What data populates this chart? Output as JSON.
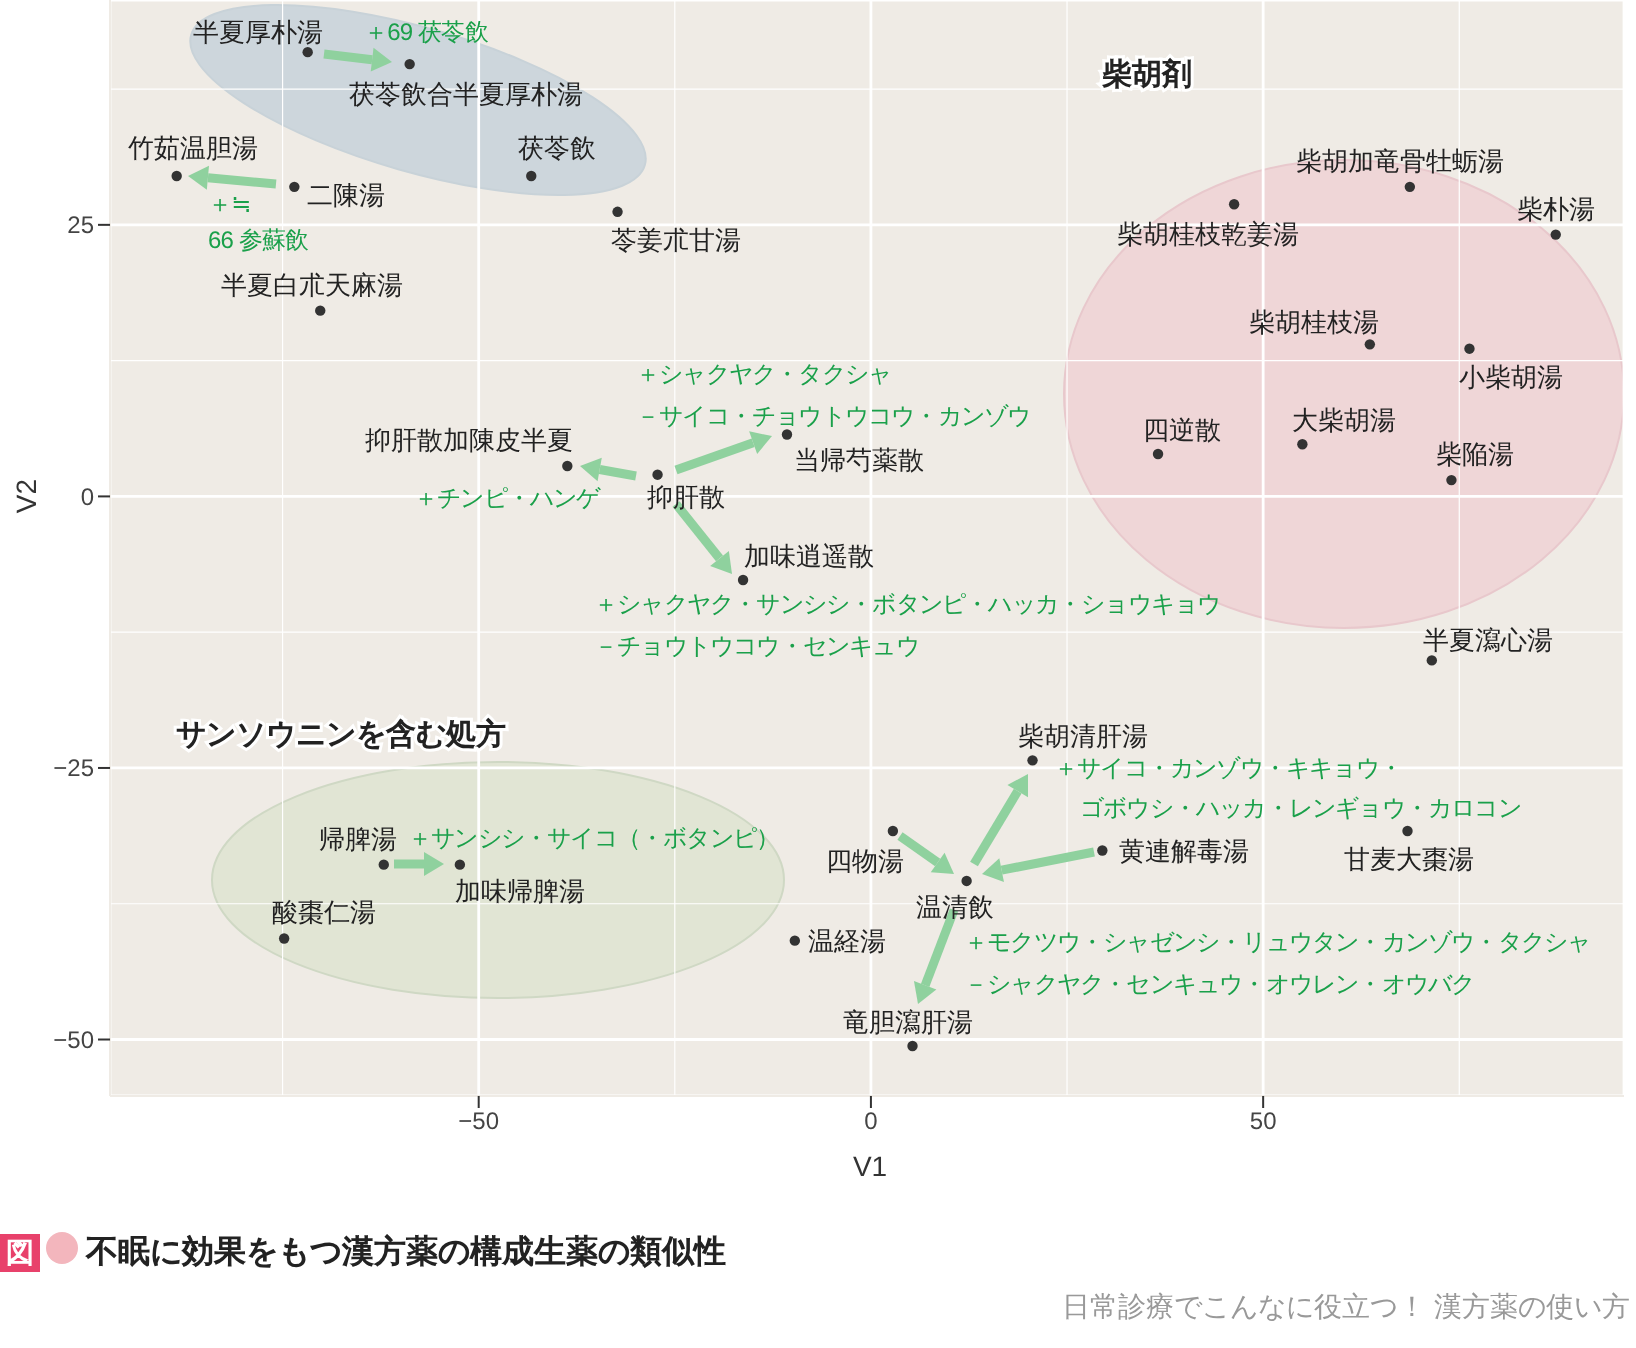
{
  "chart_data": {
    "type": "scatter",
    "title": "不眠に効果をもつ漢方薬の構成生薬の類似性",
    "xlabel": "V1",
    "ylabel": "V2",
    "x": [
      -71.8,
      -58.8,
      -88.5,
      -73.5,
      -43.3,
      -32.3,
      -70.2,
      -38.7,
      -27.2,
      -10.7,
      -16.3,
      46.3,
      68.7,
      87.3,
      63.6,
      76.3,
      36.6,
      55.0,
      74.0,
      71.5,
      20.6,
      2.8,
      29.5,
      68.4,
      12.2,
      -9.7,
      5.3,
      -62.1,
      -52.4,
      -74.8
    ],
    "values": [
      40.9,
      39.8,
      29.5,
      28.5,
      29.5,
      26.2,
      17.1,
      2.8,
      2.0,
      5.7,
      -7.7,
      26.9,
      28.5,
      24.1,
      14.0,
      13.6,
      3.9,
      4.8,
      1.5,
      -15.1,
      -24.3,
      -30.8,
      -32.6,
      -30.8,
      -35.4,
      -40.9,
      -50.6,
      -33.9,
      -33.9,
      -40.7
    ],
    "color": "#333333",
    "marker": "circle",
    "xlim": [
      -97,
      96
    ],
    "ylim": [
      -55.2,
      45.7
    ],
    "xticks": [
      -50,
      0,
      50
    ],
    "yticks": [
      -50,
      -25,
      0,
      25
    ],
    "grid": true,
    "annotations": [
      {
        "text": "半夏厚朴湯",
        "x": -71.8,
        "y": 40.9
      },
      {
        "text": "茯苓飲合半夏厚朴湯",
        "x": -58.8,
        "y": 39.8
      },
      {
        "text": "竹茹温胆湯",
        "x": -88.5,
        "y": 29.5
      },
      {
        "text": "二陳湯",
        "x": -73.5,
        "y": 28.5
      },
      {
        "text": "茯苓飲",
        "x": -43.3,
        "y": 29.5
      },
      {
        "text": "苓姜朮甘湯",
        "x": -32.3,
        "y": 26.2
      },
      {
        "text": "半夏白朮天麻湯",
        "x": -70.2,
        "y": 17.1
      },
      {
        "text": "抑肝散加陳皮半夏",
        "x": -38.7,
        "y": 2.8
      },
      {
        "text": "抑肝散",
        "x": -27.2,
        "y": 2.0
      },
      {
        "text": "当帰芍薬散",
        "x": -10.7,
        "y": 5.7
      },
      {
        "text": "加味逍遥散",
        "x": -16.3,
        "y": -7.7
      },
      {
        "text": "柴胡桂枝乾姜湯",
        "x": 46.3,
        "y": 26.9
      },
      {
        "text": "柴胡加竜骨牡蛎湯",
        "x": 68.7,
        "y": 28.5
      },
      {
        "text": "柴朴湯",
        "x": 87.3,
        "y": 24.1
      },
      {
        "text": "柴胡桂枝湯",
        "x": 63.6,
        "y": 14.0
      },
      {
        "text": "小柴胡湯",
        "x": 76.3,
        "y": 13.6
      },
      {
        "text": "四逆散",
        "x": 36.6,
        "y": 3.9
      },
      {
        "text": "大柴胡湯",
        "x": 55.0,
        "y": 4.8
      },
      {
        "text": "柴陥湯",
        "x": 74.0,
        "y": 1.5
      },
      {
        "text": "半夏瀉心湯",
        "x": 71.5,
        "y": -15.1
      },
      {
        "text": "柴胡清肝湯",
        "x": 20.6,
        "y": -24.3
      },
      {
        "text": "四物湯",
        "x": 2.8,
        "y": -30.8
      },
      {
        "text": "黄連解毒湯",
        "x": 29.5,
        "y": -32.6
      },
      {
        "text": "甘麦大棗湯",
        "x": 68.4,
        "y": -30.8
      },
      {
        "text": "温清飲",
        "x": 12.2,
        "y": -35.4
      },
      {
        "text": "温経湯",
        "x": -9.7,
        "y": -40.9
      },
      {
        "text": "竜胆瀉肝湯",
        "x": 5.3,
        "y": -50.6
      },
      {
        "text": "帰脾湯",
        "x": -62.1,
        "y": -33.9
      },
      {
        "text": "加味帰脾湯",
        "x": -52.4,
        "y": -33.9
      },
      {
        "text": "酸棗仁湯",
        "x": -74.8,
        "y": -40.7
      },
      "＋69 茯苓飲",
      "＋≒",
      "66 参蘇飲",
      "＋シャクヤク・タクシャ",
      "－サイコ・チョウトウコウ・カンゾウ",
      "＋チンピ・ハンゲ",
      "＋シャクヤク・サンシシ・ボタンピ・ハッカ・ショウキョウ",
      "－チョウトウコウ・センキュウ",
      "＋サンシシ・サイコ（・ボタンピ）",
      "＋サイコ・カンゾウ・キキョウ・",
      "ゴボウシ・ハッカ・レンギョウ・カロコン",
      "＋モクツウ・シャゼンシ・リュウタン・カンゾウ・タクシャ",
      "－シャクヤク・センキュウ・オウレン・オウバク",
      "柴胡剤",
      "サンソウニンを含む処方",
      "図",
      "日常診療でこんなに役立つ！ 漢方薬の使い方"
    ]
  }
}
